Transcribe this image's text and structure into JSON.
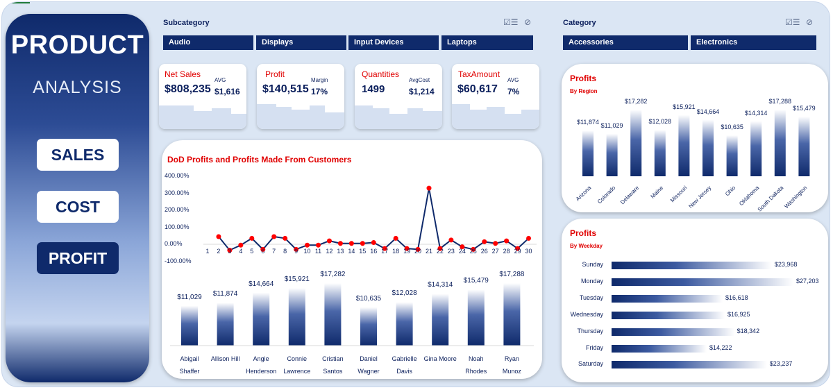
{
  "nav": {
    "title": "PRODUCT",
    "subtitle": "ANALYSIS",
    "buttons": [
      "SALES",
      "COST",
      "PROFIT"
    ],
    "active": "PROFIT"
  },
  "subcategory": {
    "label": "Subcategory",
    "items": [
      "Audio",
      "Displays",
      "Input Devices",
      "Laptops"
    ]
  },
  "category": {
    "label": "Category",
    "items": [
      "Accessories",
      "Electronics"
    ]
  },
  "kpis": [
    {
      "title": "Net Sales",
      "value": "$808,235",
      "sub_label": "AVG",
      "sub_value": "$1,616"
    },
    {
      "title": "Profit",
      "value": "$140,515",
      "sub_label": "Margin",
      "sub_value": "17%"
    },
    {
      "title": "Quantities",
      "value": "1499",
      "sub_label": "AvgCost",
      "sub_value": "$1,214"
    },
    {
      "title": "TaxAmount",
      "value": "$60,617",
      "sub_label": "AVG",
      "sub_value": "7%"
    }
  ],
  "colors": {
    "navy": "#0f2a6b",
    "red": "#e00000",
    "bg": "#dbe6f4"
  },
  "chart_data": [
    {
      "type": "line",
      "title": "DoD Profits and Profits Made From Customers",
      "x": [
        1,
        2,
        3,
        4,
        5,
        6,
        7,
        8,
        9,
        10,
        11,
        12,
        13,
        14,
        15,
        16,
        17,
        18,
        19,
        20,
        21,
        22,
        23,
        24,
        25,
        26,
        27,
        28,
        29,
        30
      ],
      "values": [
        null,
        45,
        -35,
        -5,
        35,
        -30,
        45,
        35,
        -30,
        -5,
        -5,
        20,
        5,
        5,
        5,
        10,
        -25,
        35,
        -25,
        -30,
        330,
        -25,
        25,
        -15,
        -30,
        15,
        5,
        20,
        -25,
        35
      ],
      "ytick_labels": [
        "400.00%",
        "300.00%",
        "200.00%",
        "100.00%",
        "0.00%",
        "-100.00%"
      ],
      "ylim": [
        -100,
        400
      ]
    },
    {
      "type": "bar",
      "title": "Profits Made From Customers",
      "categories": [
        [
          "Abigail",
          "Shaffer"
        ],
        [
          "Allison Hill"
        ],
        [
          "Angie",
          "Henderson"
        ],
        [
          "Connie",
          "Lawrence"
        ],
        [
          "Cristian",
          "Santos"
        ],
        [
          "Daniel",
          "Wagner"
        ],
        [
          "Gabrielle",
          "Davis"
        ],
        [
          "Gina Moore"
        ],
        [
          "Noah",
          "Rhodes"
        ],
        [
          "Ryan",
          "Munoz"
        ]
      ],
      "values": [
        11029,
        11874,
        14664,
        15921,
        17282,
        10635,
        12028,
        14314,
        15479,
        17288
      ],
      "labels": [
        "$11,029",
        "$11,874",
        "$14,664",
        "$15,921",
        "$17,282",
        "$10,635",
        "$12,028",
        "$14,314",
        "$15,479",
        "$17,288"
      ]
    },
    {
      "type": "bar",
      "title": "Profits",
      "subtitle": "By Region",
      "categories": [
        "Arizona",
        "Colorado",
        "Delaware",
        "Maine",
        "Missouri",
        "New Jersey",
        "Ohio",
        "Oklahoma",
        "South Dakota",
        "Washington"
      ],
      "values": [
        11874,
        11029,
        17282,
        12028,
        15921,
        14664,
        10635,
        14314,
        17288,
        15479
      ],
      "labels": [
        "$11,874",
        "$11,029",
        "$17,282",
        "$12,028",
        "$15,921",
        "$14,664",
        "$10,635",
        "$14,314",
        "$17,288",
        "$15,479"
      ]
    },
    {
      "type": "bar",
      "orientation": "horizontal",
      "title": "Profits",
      "subtitle": "By Weekday",
      "categories": [
        "Sunday",
        "Monday",
        "Tuesday",
        "Wednesday",
        "Thursday",
        "Friday",
        "Saturday"
      ],
      "values": [
        23968,
        27203,
        16618,
        16925,
        18342,
        14222,
        23237
      ],
      "labels": [
        "$23,968",
        "$27,203",
        "$16,618",
        "$16,925",
        "$18,342",
        "$14,222",
        "$23,237"
      ]
    }
  ]
}
